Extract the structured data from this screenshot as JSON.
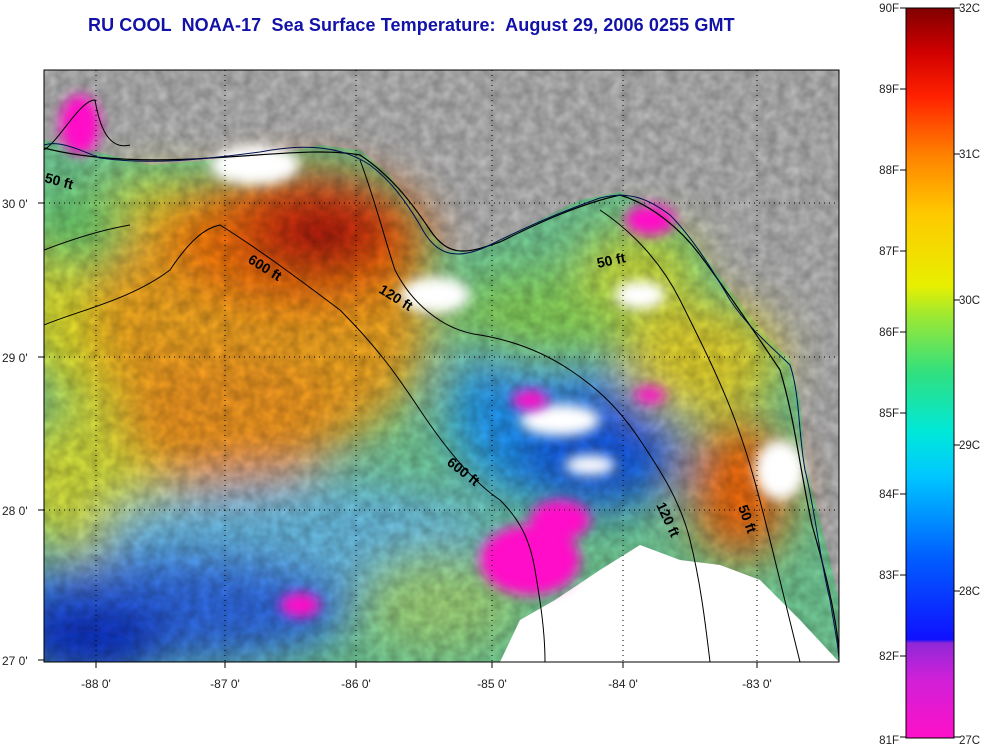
{
  "title": "RU COOL  NOAA-17  Sea Surface Temperature:  August 29, 2006 0255 GMT",
  "map": {
    "x_ticks": [
      "-88 0'",
      "-87 0'",
      "-86 0'",
      "-85 0'",
      "-84 0'",
      "-83 0'"
    ],
    "y_ticks": [
      "30 0'",
      "29 0'",
      "28 0'",
      "27 0'"
    ],
    "contour_labels": [
      "50 ft",
      "600 ft",
      "120 ft",
      "50 ft",
      "600 ft",
      "120 ft",
      "50 ft"
    ],
    "colors": {
      "land": "#c0c0c0",
      "cloud": "#ffffff",
      "frame": "#000000"
    }
  },
  "colorbar": {
    "f_labels": [
      "90F",
      "89F",
      "88F",
      "87F",
      "86F",
      "85F",
      "84F",
      "83F",
      "82F",
      "81F"
    ],
    "c_labels": [
      "32C",
      "31C",
      "30C",
      "29C",
      "28C",
      "27C"
    ],
    "c_range": [
      27,
      32
    ],
    "colors": [
      "#ff10c8",
      "#9028d8",
      "#1010ff",
      "#0060ff",
      "#00d8f0",
      "#20e0b0",
      "#70e040",
      "#e0f000",
      "#ffd000",
      "#ff8000",
      "#ff2000",
      "#900000"
    ]
  }
}
